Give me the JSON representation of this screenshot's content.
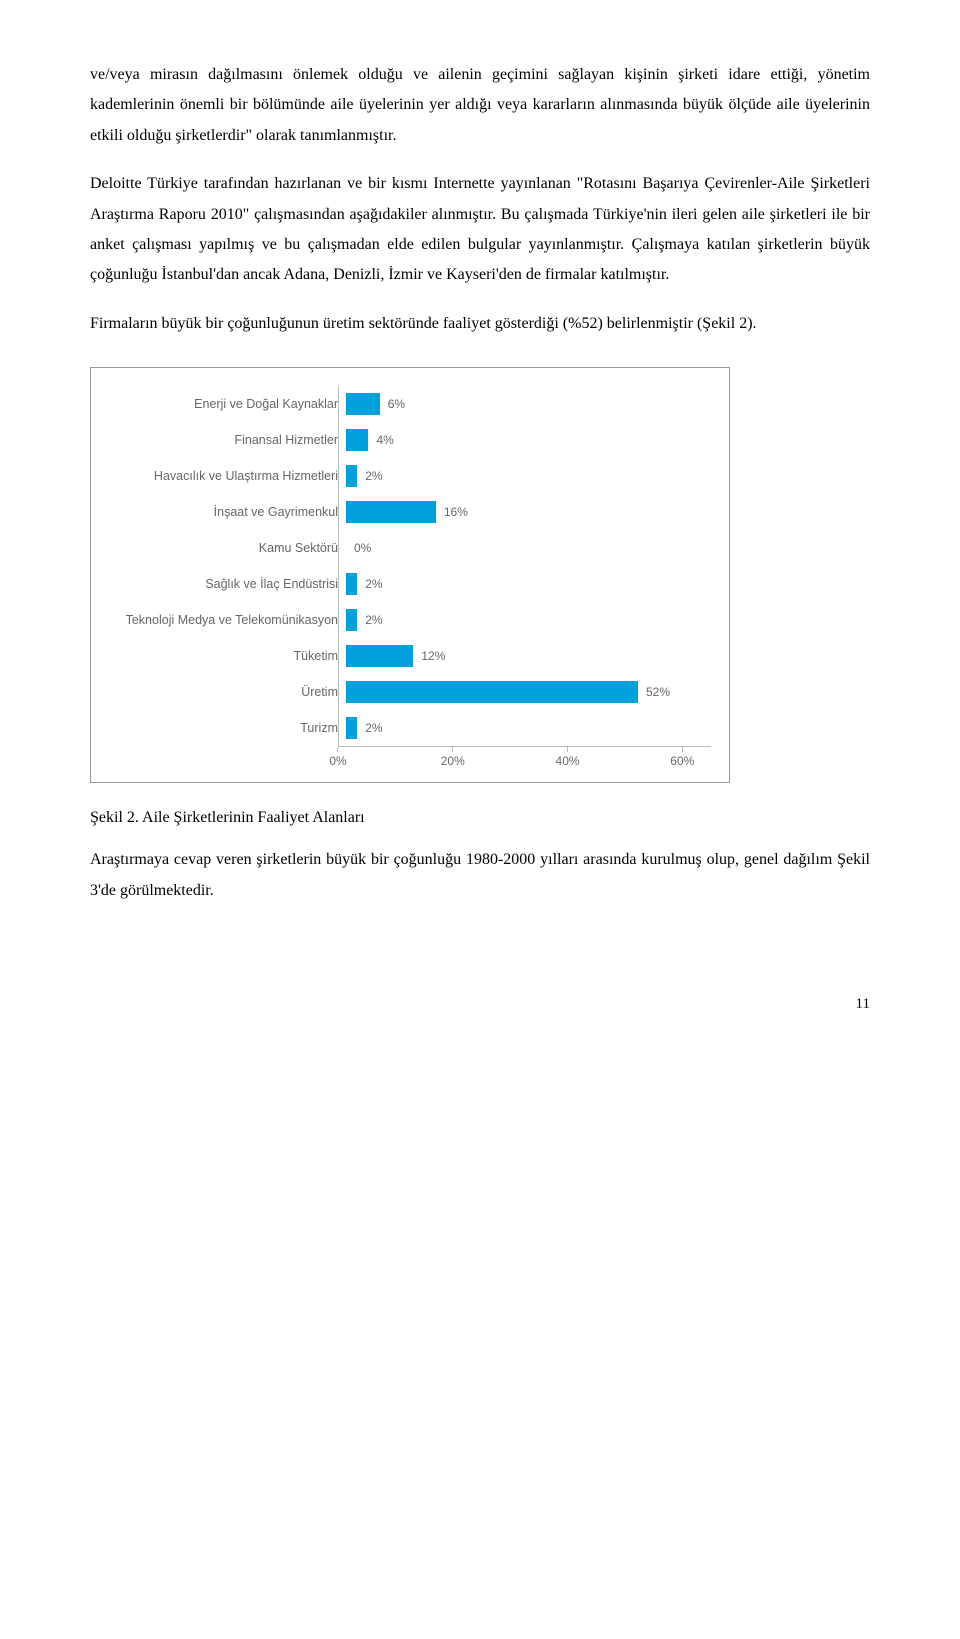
{
  "paragraphs": {
    "p1": "ve/veya mirasın dağılmasını önlemek olduğu ve ailenin geçimini sağlayan kişinin şirketi idare ettiği, yönetim kademlerinin önemli bir bölümünde aile üyelerinin yer aldığı veya kararların alınmasında büyük ölçüde aile üyelerinin etkili olduğu şirketlerdir\" olarak tanımlanmıştır.",
    "p2": "Deloitte Türkiye tarafından hazırlanan ve bir kısmı Internette yayınlanan \"Rotasını Başarıya Çevirenler-Aile Şirketleri Araştırma Raporu 2010\" çalışmasından aşağıdakiler alınmıştır. Bu çalışmada Türkiye'nin ileri gelen aile şirketleri ile bir anket çalışması yapılmış ve bu çalışmadan elde edilen bulgular yayınlanmıştır. Çalışmaya katılan şirketlerin büyük çoğunluğu İstanbul'dan ancak Adana, Denizli, İzmir ve Kayseri'den de firmalar katılmıştır.",
    "p3": "Firmaların büyük bir çoğunluğunun üretim sektöründe faaliyet gösterdiği (%52) belirlenmiştir (Şekil 2).",
    "p4": "Araştırmaya cevap veren şirketlerin büyük bir çoğunluğu 1980-2000 yılları arasında kurulmuş olup, genel dağılım Şekil 3'de görülmektedir."
  },
  "figure_caption": "Şekil 2. Aile Şirketlerinin Faaliyet Alanları",
  "page_number": "11",
  "chart": {
    "type": "bar-horizontal",
    "bar_color": "#00a0dc",
    "axis_color": "#bbbbbb",
    "label_color": "#666666",
    "background_color": "#ffffff",
    "label_fontsize": 12.5,
    "value_fontsize": 12,
    "xlim": [
      0,
      65
    ],
    "xticks": [
      {
        "pos": 0,
        "label": "0%"
      },
      {
        "pos": 20,
        "label": "20%"
      },
      {
        "pos": 40,
        "label": "40%"
      },
      {
        "pos": 60,
        "label": "60%"
      }
    ],
    "categories": [
      {
        "label": "Enerji ve Doğal Kaynaklar",
        "value": 6,
        "display": "6%"
      },
      {
        "label": "Finansal Hizmetler",
        "value": 4,
        "display": "4%"
      },
      {
        "label": "Havacılık ve Ulaştırma Hizmetleri",
        "value": 2,
        "display": "2%"
      },
      {
        "label": "İnşaat ve Gayrimenkul",
        "value": 16,
        "display": "16%"
      },
      {
        "label": "Kamu Sektörü",
        "value": 0,
        "display": "0%"
      },
      {
        "label": "Sağlık ve İlaç Endüstrisi",
        "value": 2,
        "display": "2%"
      },
      {
        "label": "Teknoloji Medya ve Telekomünikasyon",
        "value": 2,
        "display": "2%"
      },
      {
        "label": "Tüketim",
        "value": 12,
        "display": "12%"
      },
      {
        "label": "Üretim",
        "value": 52,
        "display": "52%"
      },
      {
        "label": "Turizm",
        "value": 2,
        "display": "2%"
      }
    ]
  }
}
